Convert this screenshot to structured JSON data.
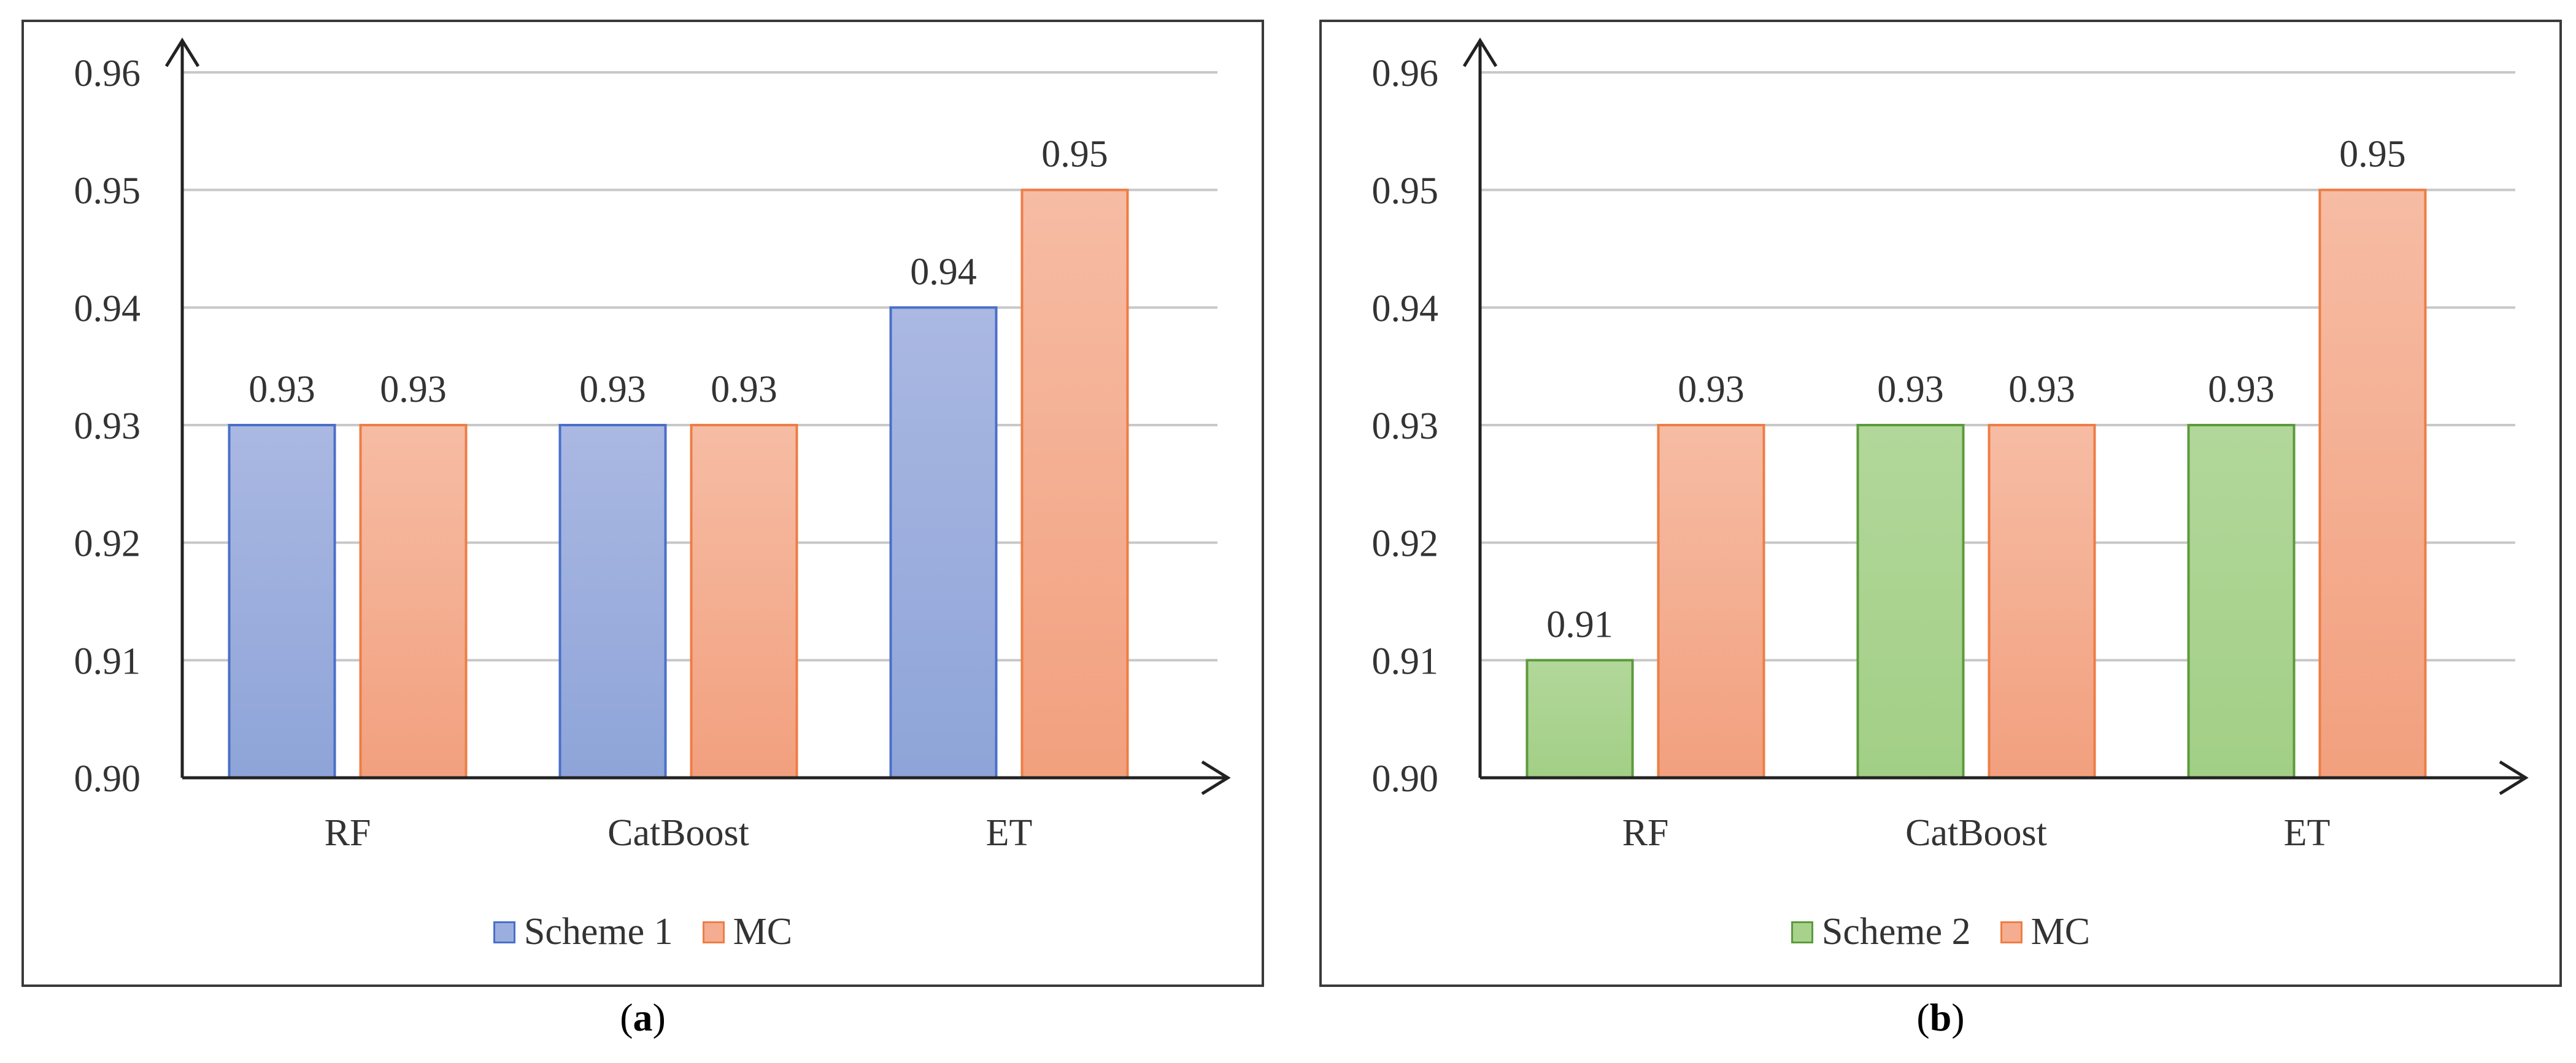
{
  "chart_data": [
    {
      "type": "bar",
      "id": "a",
      "caption_label": "a",
      "categories": [
        "RF",
        "CatBoost",
        "ET"
      ],
      "series": [
        {
          "name": "Scheme 1",
          "values": [
            0.93,
            0.93,
            0.94
          ],
          "fill_top": "#aab8e2",
          "fill_bottom": "#8ea4d8",
          "stroke": "#4a6fc8"
        },
        {
          "name": "MC",
          "values": [
            0.93,
            0.93,
            0.95
          ],
          "fill_top": "#f6bca4",
          "fill_bottom": "#f2a07e",
          "stroke": "#ee7d45"
        }
      ],
      "data_labels": [
        [
          "0.93",
          "0.93",
          "0.94"
        ],
        [
          "0.93",
          "0.93",
          "0.95"
        ]
      ],
      "ylim": [
        0.9,
        0.96
      ],
      "yticks": [
        "0.90",
        "0.91",
        "0.92",
        "0.93",
        "0.94",
        "0.95",
        "0.96"
      ],
      "grid": true,
      "legend": "bottom",
      "title": "",
      "xlabel": "",
      "ylabel": ""
    },
    {
      "type": "bar",
      "id": "b",
      "caption_label": "b",
      "categories": [
        "RF",
        "CatBoost",
        "ET"
      ],
      "series": [
        {
          "name": "Scheme 2",
          "values": [
            0.91,
            0.93,
            0.93
          ],
          "fill_top": "#b2d79a",
          "fill_bottom": "#a2cf86",
          "stroke": "#5c9a3c"
        },
        {
          "name": "MC",
          "values": [
            0.93,
            0.93,
            0.95
          ],
          "fill_top": "#f6bca4",
          "fill_bottom": "#f2a07e",
          "stroke": "#ee7d45"
        }
      ],
      "data_labels": [
        [
          "0.91",
          "0.93",
          "0.93"
        ],
        [
          "0.93",
          "0.93",
          "0.95"
        ]
      ],
      "ylim": [
        0.9,
        0.96
      ],
      "yticks": [
        "0.90",
        "0.91",
        "0.92",
        "0.93",
        "0.94",
        "0.95",
        "0.96"
      ],
      "grid": true,
      "legend": "bottom",
      "title": "",
      "xlabel": "",
      "ylabel": ""
    }
  ]
}
